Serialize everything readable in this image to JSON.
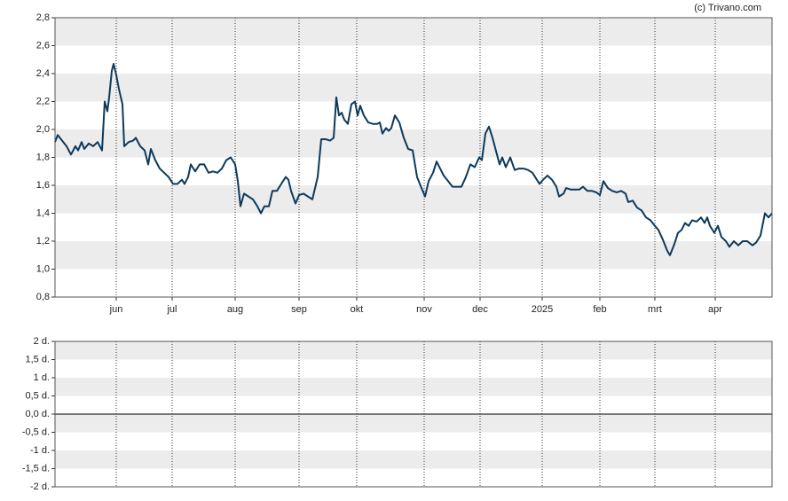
{
  "chart_data": [
    {
      "type": "line",
      "source": "(c) Trivano.com",
      "x": [
        0,
        3,
        8,
        13,
        18,
        23,
        26,
        30,
        33,
        38,
        43,
        48,
        53,
        56,
        59,
        61,
        64,
        66,
        69,
        72,
        76,
        78,
        83,
        88,
        91,
        96,
        101,
        105,
        108,
        113,
        118,
        123,
        128,
        133,
        138,
        143,
        146,
        150,
        153,
        158,
        163,
        168,
        173,
        178,
        183,
        188,
        193,
        198,
        203,
        206,
        209,
        213,
        218,
        223,
        228,
        232,
        236,
        241,
        245,
        250,
        255,
        260,
        263,
        266,
        271,
        275,
        280,
        285,
        290,
        296,
        300,
        305,
        310,
        314,
        317,
        320,
        323,
        326,
        330,
        334,
        338,
        341,
        344,
        348,
        353,
        358,
        363,
        366,
        369,
        373,
        376,
        379,
        383,
        388,
        393,
        398,
        403,
        408,
        413,
        417,
        421,
        426,
        430,
        434,
        438,
        443,
        448,
        453,
        458,
        463,
        468,
        473,
        478,
        481,
        485,
        489,
        493,
        498,
        501,
        504,
        508,
        513,
        518,
        523,
        528,
        533,
        538,
        543,
        546,
        550,
        555,
        560,
        565,
        568,
        573,
        576,
        581,
        586,
        591,
        595,
        600,
        605,
        610,
        614,
        618,
        623,
        628,
        633,
        638,
        643,
        646,
        651,
        656,
        661,
        666,
        671,
        676,
        680,
        685,
        690,
        693,
        698,
        702,
        706,
        710,
        714,
        718,
        723,
        728,
        732,
        735,
        738,
        743,
        747,
        751,
        756,
        760,
        765,
        770,
        775,
        780,
        786,
        790,
        795,
        800,
        804,
        808
      ],
      "series": [
        {
          "color": "#0d3a5c",
          "values": [
            1.91,
            1.96,
            1.92,
            1.88,
            1.82,
            1.88,
            1.85,
            1.91,
            1.86,
            1.9,
            1.88,
            1.91,
            1.85,
            2.2,
            2.13,
            2.23,
            2.42,
            2.47,
            2.39,
            2.29,
            2.18,
            1.88,
            1.91,
            1.92,
            1.94,
            1.88,
            1.85,
            1.75,
            1.86,
            1.78,
            1.72,
            1.69,
            1.66,
            1.61,
            1.61,
            1.64,
            1.61,
            1.66,
            1.75,
            1.7,
            1.75,
            1.75,
            1.69,
            1.7,
            1.69,
            1.72,
            1.78,
            1.8,
            1.75,
            1.63,
            1.45,
            1.54,
            1.52,
            1.5,
            1.45,
            1.4,
            1.45,
            1.45,
            1.56,
            1.56,
            1.61,
            1.66,
            1.64,
            1.56,
            1.47,
            1.53,
            1.54,
            1.52,
            1.5,
            1.66,
            1.93,
            1.93,
            1.92,
            1.94,
            2.23,
            2.1,
            2.12,
            2.07,
            2.04,
            2.18,
            2.2,
            2.1,
            2.17,
            2.1,
            2.05,
            2.04,
            2.04,
            2.05,
            1.97,
            2.01,
            1.99,
            2.01,
            2.1,
            2.05,
            1.94,
            1.86,
            1.85,
            1.66,
            1.58,
            1.52,
            1.63,
            1.69,
            1.77,
            1.72,
            1.67,
            1.63,
            1.59,
            1.59,
            1.59,
            1.66,
            1.75,
            1.73,
            1.8,
            1.78,
            1.97,
            2.02,
            1.94,
            1.82,
            1.75,
            1.8,
            1.73,
            1.8,
            1.71,
            1.72,
            1.72,
            1.71,
            1.69,
            1.64,
            1.61,
            1.64,
            1.67,
            1.64,
            1.59,
            1.52,
            1.54,
            1.58,
            1.57,
            1.57,
            1.57,
            1.59,
            1.56,
            1.56,
            1.55,
            1.53,
            1.63,
            1.58,
            1.56,
            1.55,
            1.56,
            1.54,
            1.48,
            1.49,
            1.44,
            1.42,
            1.37,
            1.35,
            1.31,
            1.28,
            1.21,
            1.13,
            1.1,
            1.18,
            1.26,
            1.28,
            1.33,
            1.31,
            1.35,
            1.34,
            1.37,
            1.33,
            1.37,
            1.31,
            1.26,
            1.31,
            1.23,
            1.2,
            1.16,
            1.2,
            1.17,
            1.2,
            1.2,
            1.17,
            1.19,
            1.24,
            1.4,
            1.37,
            1.4
          ]
        }
      ],
      "xlim": [
        0,
        808
      ],
      "xticks": [
        {
          "value": 69,
          "label": "jun"
        },
        {
          "value": 132,
          "label": "jul"
        },
        {
          "value": 203,
          "label": "aug"
        },
        {
          "value": 275,
          "label": "sep"
        },
        {
          "value": 340,
          "label": "okt"
        },
        {
          "value": 416,
          "label": "nov"
        },
        {
          "value": 479,
          "label": "dec"
        },
        {
          "value": 549,
          "label": "2025"
        },
        {
          "value": 614,
          "label": "feb"
        },
        {
          "value": 676,
          "label": "mrt"
        },
        {
          "value": 744,
          "label": "apr"
        }
      ],
      "ylim": [
        0.8,
        2.8
      ],
      "yticks": [
        {
          "value": 0.8,
          "label": "0,8"
        },
        {
          "value": 1.0,
          "label": "1,0"
        },
        {
          "value": 1.2,
          "label": "1,2"
        },
        {
          "value": 1.4,
          "label": "1,4"
        },
        {
          "value": 1.6,
          "label": "1,6"
        },
        {
          "value": 1.8,
          "label": "1,8"
        },
        {
          "value": 2.0,
          "label": "2,0"
        },
        {
          "value": 2.2,
          "label": "2,2"
        },
        {
          "value": 2.4,
          "label": "2,4"
        },
        {
          "value": 2.6,
          "label": "2,6"
        },
        {
          "value": 2.8,
          "label": "2,8"
        }
      ],
      "grid": true
    },
    {
      "type": "bar",
      "ylim": [
        -2,
        2
      ],
      "yticks": [
        {
          "value": -2,
          "label": "-2 d."
        },
        {
          "value": -1.5,
          "label": "-1,5 d."
        },
        {
          "value": -1,
          "label": "-1 d."
        },
        {
          "value": -0.5,
          "label": "-0,5 d."
        },
        {
          "value": 0,
          "label": "0,0 d."
        },
        {
          "value": 0.5,
          "label": "0,5 d."
        },
        {
          "value": 1,
          "label": "1 d."
        },
        {
          "value": 1.5,
          "label": "1,5 d."
        },
        {
          "value": 2,
          "label": "2 d."
        }
      ],
      "grid": true
    }
  ]
}
